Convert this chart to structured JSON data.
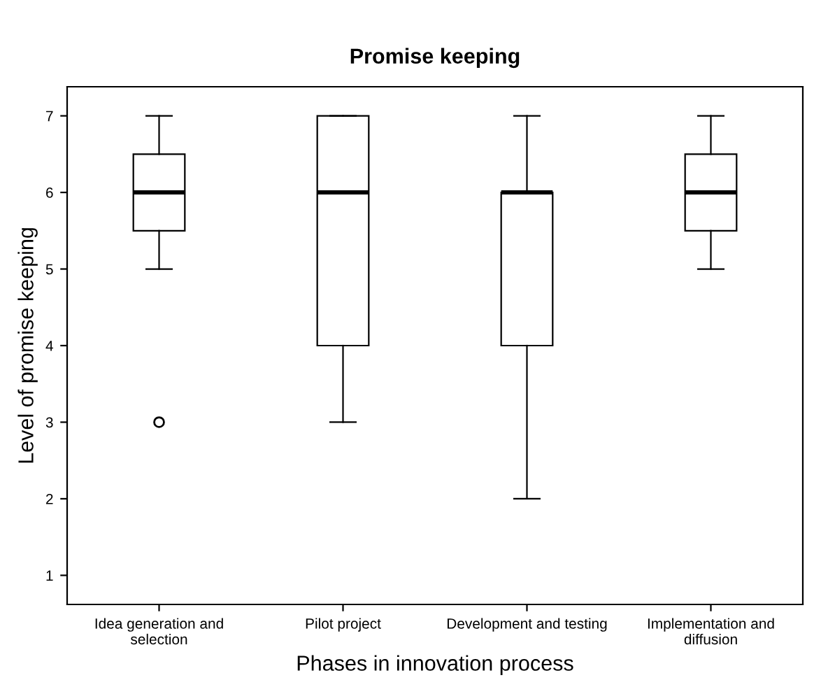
{
  "chart_data": {
    "type": "box",
    "title": "Promise keeping",
    "xlabel": "Phases in innovation process",
    "ylabel": "Level of promise keeping",
    "categories": [
      "Idea generation and\nselection",
      "Pilot project",
      "Development and testing",
      "Implementation and\ndiffusion"
    ],
    "boxes": [
      {
        "low": 5,
        "q1": 5.5,
        "median": 6,
        "q3": 6.5,
        "high": 7,
        "outliers": [
          3
        ]
      },
      {
        "low": 3,
        "q1": 4,
        "median": 6,
        "q3": 7,
        "high": 7
      },
      {
        "low": 2,
        "q1": 4,
        "median": 6,
        "q3": 6,
        "high": 7
      },
      {
        "low": 5,
        "q1": 5.5,
        "median": 6,
        "q3": 6.5,
        "high": 7
      }
    ],
    "ylim": [
      0.62,
      7.38
    ],
    "yticks": [
      1,
      2,
      3,
      4,
      5,
      6,
      7
    ],
    "grid": false,
    "legend": false
  }
}
